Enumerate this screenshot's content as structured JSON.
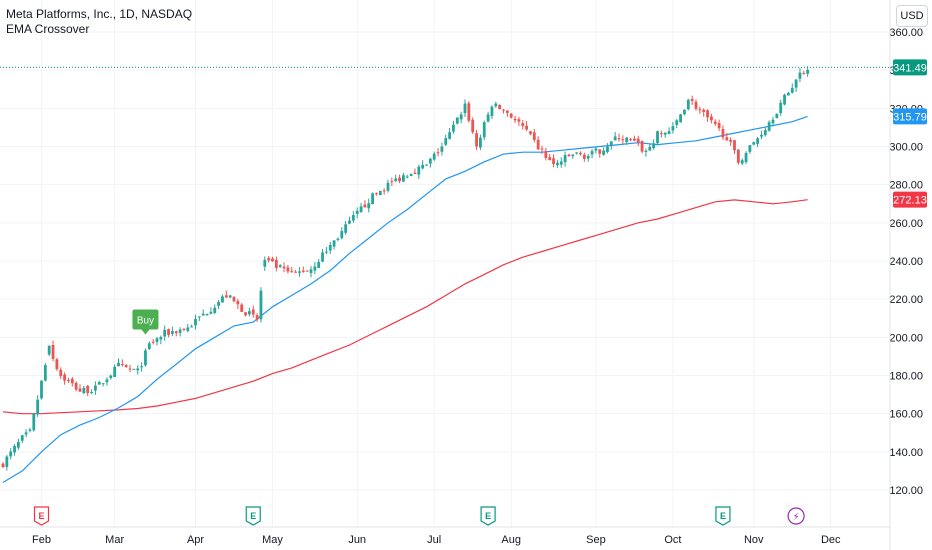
{
  "header": {
    "title": "Meta Platforms, Inc., 1D, NASDAQ",
    "indicator": "EMA Crossover",
    "currency": "USD"
  },
  "colors": {
    "up": "#26a69a",
    "down": "#ef5350",
    "ema_fast": "#2196f3",
    "ema_slow": "#f23645",
    "last_price": "#089981",
    "buy_marker": "#4caf50",
    "earnings_icon": "#089981",
    "earnings_icon_past": "#f23645",
    "split_icon": "#9c27b0"
  },
  "chart_data": {
    "type": "candlestick",
    "y_range": [
      112,
      366
    ],
    "x_range": [
      0,
      209
    ],
    "y_ticks": [
      "120.00",
      "140.00",
      "160.00",
      "180.00",
      "200.00",
      "220.00",
      "240.00",
      "260.00",
      "280.00",
      "300.00",
      "320.00",
      "340.00",
      "360.00"
    ],
    "x_ticks": [
      {
        "label": "Feb",
        "day": 10
      },
      {
        "label": "Mar",
        "day": 29
      },
      {
        "label": "Apr",
        "day": 50
      },
      {
        "label": "May",
        "day": 70
      },
      {
        "label": "Jun",
        "day": 92
      },
      {
        "label": "Jul",
        "day": 112
      },
      {
        "label": "Aug",
        "day": 132
      },
      {
        "label": "Sep",
        "day": 154
      },
      {
        "label": "Oct",
        "day": 174
      },
      {
        "label": "Nov",
        "day": 195
      },
      {
        "label": "Dec",
        "day": 215
      }
    ],
    "price_tags": [
      {
        "label": "341.49",
        "value": 341.49,
        "role": "last"
      },
      {
        "label": "315.79",
        "value": 315.79,
        "role": "ema_fast"
      },
      {
        "label": "272.13",
        "value": 272.13,
        "role": "ema_slow"
      }
    ],
    "keyframes": [
      [
        0,
        134
      ],
      [
        5,
        147
      ],
      [
        7,
        150
      ],
      [
        12,
        194
      ],
      [
        15,
        180
      ],
      [
        20,
        172
      ],
      [
        24,
        173
      ],
      [
        30,
        185
      ],
      [
        35,
        182
      ],
      [
        38,
        196
      ],
      [
        42,
        202
      ],
      [
        48,
        205
      ],
      [
        52,
        212
      ],
      [
        58,
        222
      ],
      [
        62,
        215
      ],
      [
        66,
        209
      ],
      [
        68,
        240
      ],
      [
        72,
        236
      ],
      [
        75,
        233
      ],
      [
        80,
        236
      ],
      [
        85,
        248
      ],
      [
        90,
        260
      ],
      [
        95,
        272
      ],
      [
        100,
        280
      ],
      [
        105,
        286
      ],
      [
        110,
        290
      ],
      [
        114,
        300
      ],
      [
        117,
        310
      ],
      [
        120,
        322
      ],
      [
        123,
        300
      ],
      [
        127,
        322
      ],
      [
        131,
        318
      ],
      [
        135,
        310
      ],
      [
        138,
        302
      ],
      [
        143,
        290
      ],
      [
        148,
        296
      ],
      [
        152,
        295
      ],
      [
        155,
        298
      ],
      [
        160,
        305
      ],
      [
        164,
        302
      ],
      [
        167,
        297
      ],
      [
        170,
        306
      ],
      [
        174,
        309
      ],
      [
        178,
        325
      ],
      [
        181,
        319
      ],
      [
        184,
        312
      ],
      [
        188,
        305
      ],
      [
        191,
        292
      ],
      [
        195,
        302
      ],
      [
        198,
        310
      ],
      [
        202,
        322
      ],
      [
        205,
        332
      ],
      [
        207,
        338
      ],
      [
        209,
        341.49
      ]
    ],
    "ema_fast": [
      [
        0,
        124
      ],
      [
        5,
        130
      ],
      [
        10,
        140
      ],
      [
        15,
        149
      ],
      [
        20,
        154
      ],
      [
        25,
        158
      ],
      [
        30,
        163
      ],
      [
        35,
        169
      ],
      [
        40,
        178
      ],
      [
        45,
        186
      ],
      [
        50,
        194
      ],
      [
        55,
        200
      ],
      [
        60,
        206
      ],
      [
        65,
        208
      ],
      [
        70,
        216
      ],
      [
        75,
        222
      ],
      [
        80,
        228
      ],
      [
        85,
        235
      ],
      [
        90,
        244
      ],
      [
        95,
        252
      ],
      [
        100,
        260
      ],
      [
        105,
        267
      ],
      [
        110,
        275
      ],
      [
        115,
        283
      ],
      [
        120,
        287
      ],
      [
        125,
        292
      ],
      [
        130,
        296
      ],
      [
        135,
        297
      ],
      [
        140,
        297
      ],
      [
        145,
        298
      ],
      [
        150,
        299
      ],
      [
        155,
        300
      ],
      [
        160,
        301
      ],
      [
        165,
        302
      ],
      [
        170,
        301
      ],
      [
        175,
        302
      ],
      [
        180,
        303
      ],
      [
        185,
        305
      ],
      [
        190,
        307
      ],
      [
        195,
        309
      ],
      [
        200,
        311
      ],
      [
        205,
        313
      ],
      [
        209,
        315.79
      ]
    ],
    "ema_slow": [
      [
        0,
        161
      ],
      [
        5,
        160
      ],
      [
        10,
        160
      ],
      [
        15,
        160.5
      ],
      [
        20,
        161
      ],
      [
        25,
        161.5
      ],
      [
        30,
        162
      ],
      [
        35,
        162.7
      ],
      [
        40,
        164
      ],
      [
        45,
        166
      ],
      [
        50,
        168
      ],
      [
        55,
        171
      ],
      [
        60,
        174
      ],
      [
        65,
        177
      ],
      [
        70,
        181
      ],
      [
        75,
        184
      ],
      [
        80,
        188
      ],
      [
        85,
        192
      ],
      [
        90,
        196
      ],
      [
        95,
        201
      ],
      [
        100,
        206
      ],
      [
        105,
        211
      ],
      [
        110,
        216
      ],
      [
        115,
        222
      ],
      [
        120,
        228
      ],
      [
        125,
        233
      ],
      [
        130,
        238
      ],
      [
        135,
        242
      ],
      [
        140,
        245
      ],
      [
        145,
        248
      ],
      [
        150,
        251
      ],
      [
        155,
        254
      ],
      [
        160,
        257
      ],
      [
        165,
        260
      ],
      [
        170,
        262
      ],
      [
        175,
        265
      ],
      [
        180,
        268
      ],
      [
        185,
        271
      ],
      [
        190,
        272
      ],
      [
        195,
        271
      ],
      [
        200,
        270
      ],
      [
        205,
        271
      ],
      [
        209,
        272.13
      ]
    ],
    "markers": [
      {
        "type": "signal",
        "label": "Buy",
        "day": 37,
        "value": 202
      }
    ],
    "events": [
      {
        "type": "earnings",
        "label": "E",
        "day": 10,
        "past": true
      },
      {
        "type": "earnings",
        "label": "E",
        "day": 65,
        "past": false
      },
      {
        "type": "earnings",
        "label": "E",
        "day": 126,
        "past": false
      },
      {
        "type": "earnings",
        "label": "E",
        "day": 187,
        "past": false
      },
      {
        "type": "split",
        "label": "⚡",
        "day": 206
      }
    ]
  }
}
